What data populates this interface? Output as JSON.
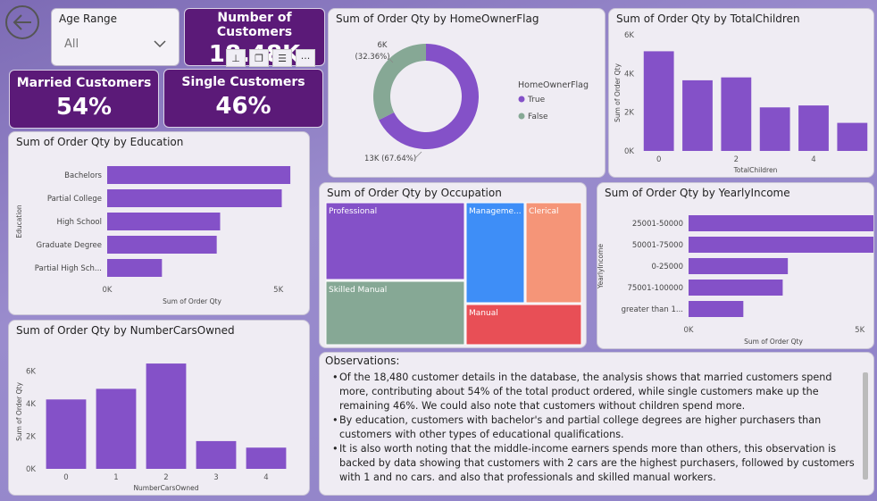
{
  "nav": {
    "back_icon": "arrow-left-icon"
  },
  "slicer": {
    "label": "Age Range",
    "value": "All"
  },
  "kpis": {
    "customers": {
      "label": "Number of Customers",
      "value": "18.48K"
    },
    "married": {
      "label": "Married Customers",
      "value": "54%"
    },
    "single": {
      "label": "Single Customers",
      "value": "46%"
    }
  },
  "toolbar_icons": [
    "pin-icon",
    "copy-icon",
    "filter-icon",
    "more-icon"
  ],
  "colors": {
    "purple": "#8451c8",
    "green": "#86a895",
    "blue": "#3e8ef7",
    "salmon": "#f59578",
    "red": "#e84f56"
  },
  "chart_data": [
    {
      "id": "homeowner",
      "type": "pie",
      "title": "Sum of Order Qty by HomeOwnerFlag",
      "legend_title": "HomeOwnerFlag",
      "legend_position": "right",
      "categories": [
        "True",
        "False"
      ],
      "values": [
        67.64,
        32.36
      ],
      "labels": [
        "13K (67.64%)",
        "6K (32.36%)"
      ]
    },
    {
      "id": "children",
      "type": "bar",
      "title": "Sum of Order Qty by TotalChildren",
      "xlabel": "TotalChildren",
      "ylabel": "Sum of Order Qty",
      "categories": [
        0,
        1,
        2,
        3,
        4,
        5
      ],
      "x_tick_labels": [
        "0",
        "2",
        "4"
      ],
      "values": [
        5150,
        3650,
        3800,
        2250,
        2350,
        1450
      ],
      "ylim": [
        0,
        6000
      ],
      "y_ticks": [
        "0K",
        "2K",
        "4K",
        "6K"
      ]
    },
    {
      "id": "education",
      "type": "bar",
      "orientation": "horizontal",
      "title": "Sum of Order Qty by Education",
      "xlabel": "Sum of Order Qty",
      "ylabel": "Education",
      "categories": [
        "Bachelors",
        "Partial College",
        "High School",
        "Graduate Degree",
        "Partial High Sch..."
      ],
      "values": [
        5350,
        5100,
        3300,
        3200,
        1600
      ],
      "xlim": [
        0,
        6000
      ],
      "x_ticks": [
        "0K",
        "5K"
      ]
    },
    {
      "id": "occupation",
      "type": "heatmap",
      "subtype": "treemap",
      "title": "Sum of Order Qty by Occupation",
      "categories": [
        "Professional",
        "Skilled Manual",
        "Manageme...",
        "Clerical",
        "Manual"
      ],
      "values": [
        5600,
        4700,
        3900,
        3000,
        2200
      ]
    },
    {
      "id": "income",
      "type": "bar",
      "orientation": "horizontal",
      "title": "Sum of Order Qty by YearlyIncome",
      "xlabel": "Sum of Order Qty",
      "ylabel": "YearlyIncome",
      "categories": [
        "25001-50000",
        "50001-75000",
        "0-25000",
        "75001-100000",
        "greater than 1..."
      ],
      "values": [
        5700,
        5500,
        2900,
        2750,
        1600
      ],
      "xlim": [
        0,
        6000
      ],
      "x_ticks": [
        "0K",
        "5K"
      ]
    },
    {
      "id": "cars",
      "type": "bar",
      "title": "Sum of Order Qty by NumberCarsOwned",
      "xlabel": "NumberCarsOwned",
      "ylabel": "Sum of Order Qty",
      "categories": [
        "0",
        "1",
        "2",
        "3",
        "4"
      ],
      "values": [
        4250,
        4900,
        6450,
        1700,
        1300
      ],
      "ylim": [
        0,
        7000
      ],
      "y_ticks": [
        "0K",
        "2K",
        "4K",
        "6K"
      ]
    }
  ],
  "observations": {
    "title": "Observations:",
    "items": [
      "Of the 18,480 customer details in the database, the analysis shows that married customers spend more, contributing about 54% of the total product ordered, while single customers make up the remaining 46%. We could also note that customers without children spend more.",
      "By education, customers with bachelor's and partial college degrees are higher purchasers than customers with other types of educational qualifications.",
      "It is also worth noting that the middle-income earners spends more than others, this observation is backed by data showing that customers with 2 cars are the highest purchasers, followed by customers with 1 and no cars. and also that professionals and skilled manual workers."
    ]
  }
}
